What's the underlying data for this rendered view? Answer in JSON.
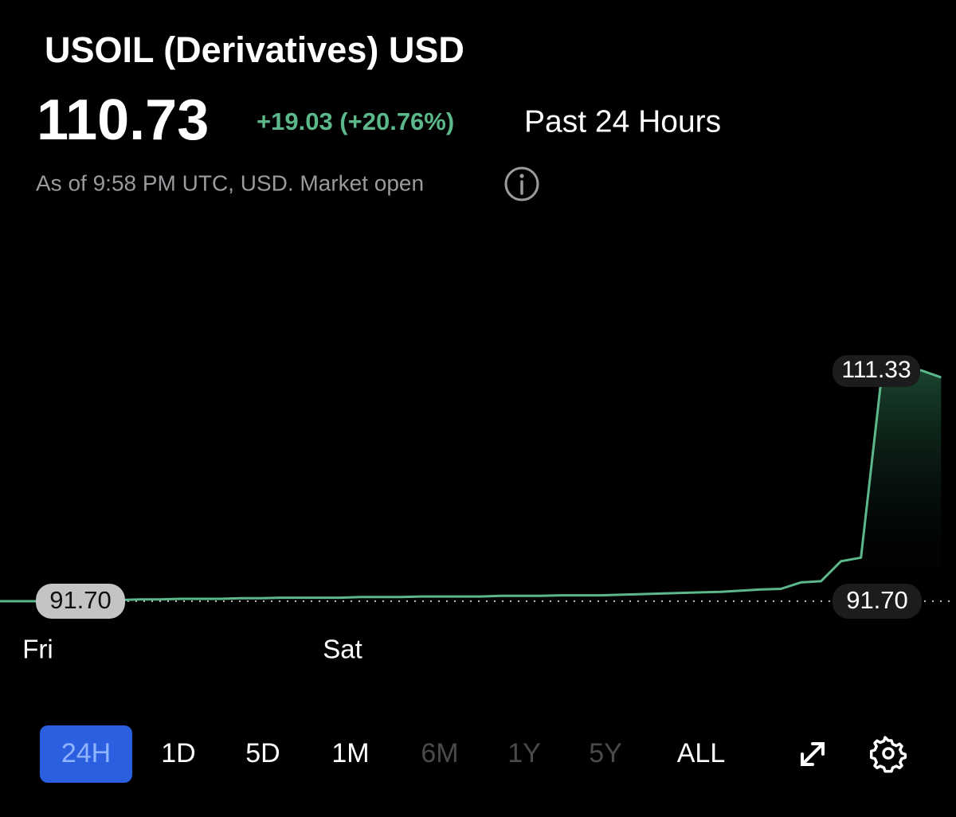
{
  "header": {
    "title": "USOIL (Derivatives) USD",
    "price": "110.73",
    "change": "+19.03 (+20.76%)",
    "period": "Past 24 Hours",
    "as_of": "As of 9:58 PM UTC, USD. Market open"
  },
  "chart_data": {
    "type": "line",
    "categories": [
      null,
      null,
      "Fri",
      null,
      null,
      null,
      null,
      null,
      null,
      null,
      null,
      null,
      null,
      null,
      null,
      null,
      null,
      "Sat",
      null,
      null,
      null,
      null,
      null,
      null,
      null,
      null,
      null,
      null,
      null,
      null,
      null,
      null,
      null,
      null,
      null,
      null,
      null,
      null,
      null,
      null,
      null,
      null,
      null,
      null,
      null,
      null,
      null,
      null
    ],
    "values": [
      91.7,
      91.7,
      91.7,
      91.7,
      91.7,
      91.75,
      91.8,
      91.85,
      91.85,
      91.9,
      91.9,
      91.9,
      91.95,
      91.95,
      92.0,
      92.0,
      92.0,
      92.0,
      92.05,
      92.05,
      92.05,
      92.1,
      92.1,
      92.1,
      92.1,
      92.15,
      92.15,
      92.15,
      92.2,
      92.2,
      92.2,
      92.25,
      92.3,
      92.35,
      92.4,
      92.45,
      92.5,
      92.6,
      92.7,
      92.75,
      93.3,
      93.4,
      95.1,
      95.4,
      110.4,
      111.1,
      111.33,
      110.73
    ],
    "color": "#5cb88a",
    "ylim": [
      89.33,
      122.5
    ],
    "reference_line": {
      "value": 91.7,
      "label": "91.70"
    },
    "high_marker": 111.33
  },
  "range_buttons": [
    {
      "label": "24H",
      "state": "active"
    },
    {
      "label": "1D",
      "state": "enabled"
    },
    {
      "label": "5D",
      "state": "enabled"
    },
    {
      "label": "1M",
      "state": "enabled"
    },
    {
      "label": "6M",
      "state": "disabled"
    },
    {
      "label": "1Y",
      "state": "disabled"
    },
    {
      "label": "5Y",
      "state": "disabled"
    },
    {
      "label": "ALL",
      "state": "enabled"
    }
  ]
}
